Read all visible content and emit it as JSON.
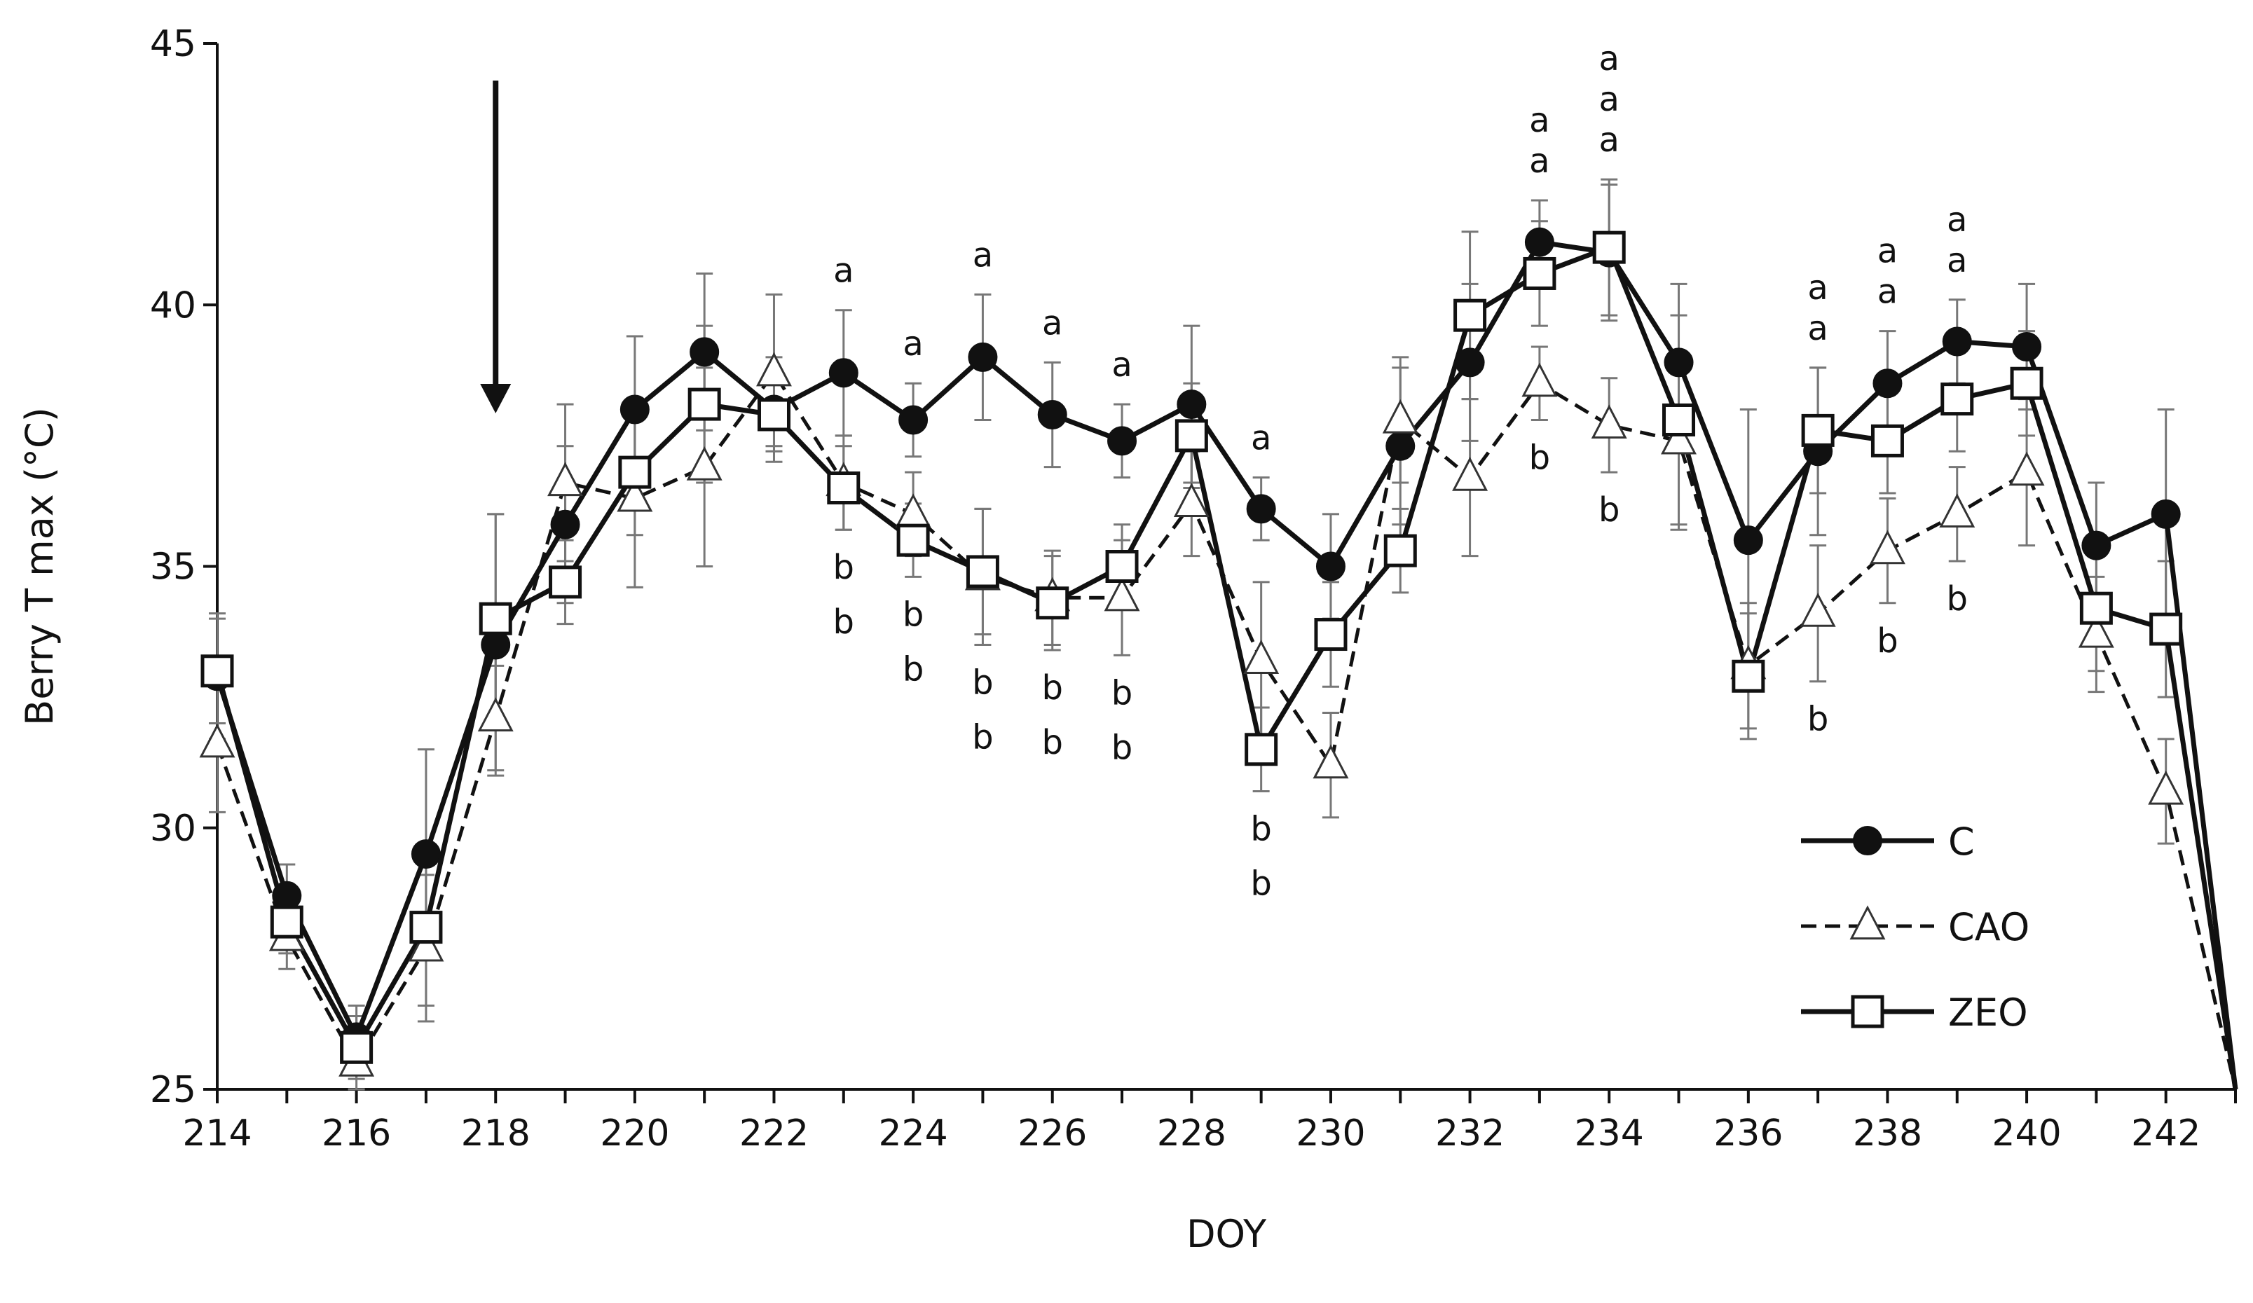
{
  "chart_data": {
    "type": "line",
    "title": "",
    "xlabel": "DOY",
    "ylabel": "Berry T max (°C)",
    "xlim": [
      214,
      243
    ],
    "ylim": [
      25,
      45
    ],
    "x_ticks": [
      "214",
      "216",
      "218",
      "220",
      "222",
      "224",
      "226",
      "228",
      "230",
      "232",
      "234",
      "236",
      "238",
      "240",
      "242"
    ],
    "y_ticks": [
      "25",
      "30",
      "35",
      "40",
      "45"
    ],
    "grid": false,
    "legend_position": "bottom-right",
    "annotation_arrow_x": 218,
    "x": [
      214,
      215,
      216,
      217,
      218,
      219,
      220,
      221,
      222,
      223,
      224,
      225,
      226,
      227,
      228,
      229,
      230,
      231,
      232,
      233,
      234,
      235,
      236,
      237,
      238,
      239,
      240,
      241,
      242,
      243
    ],
    "series": [
      {
        "name": "C",
        "marker": "filled-circle",
        "line_style": "solid",
        "values": [
          32.9,
          28.7,
          26.0,
          29.5,
          33.5,
          35.8,
          38.0,
          39.1,
          38.0,
          38.7,
          37.8,
          39.0,
          37.9,
          37.4,
          38.1,
          36.1,
          35.0,
          37.3,
          38.9,
          41.2,
          41.0,
          38.9,
          35.5,
          37.2,
          38.5,
          39.3,
          39.2,
          35.4,
          36.0,
          25.0
        ],
        "errors": [
          1.2,
          0.6,
          0.6,
          2.0,
          2.5,
          1.5,
          1.4,
          1.5,
          1.0,
          1.2,
          0.7,
          1.2,
          1.0,
          0.7,
          1.5,
          0.6,
          1.0,
          1.5,
          1.5,
          0.8,
          1.3,
          1.5,
          2.5,
          1.6,
          1.0,
          0.8,
          1.2,
          1.2,
          2.0,
          0.0
        ]
      },
      {
        "name": "CAO",
        "marker": "open-triangle",
        "line_style": "dashed",
        "values": [
          31.6,
          27.9,
          25.5,
          27.7,
          32.1,
          36.6,
          36.3,
          36.9,
          38.7,
          36.6,
          36.0,
          34.8,
          34.4,
          34.4,
          36.2,
          33.2,
          31.2,
          37.8,
          36.7,
          38.5,
          37.7,
          37.4,
          33.1,
          34.1,
          35.3,
          36.0,
          36.8,
          33.7,
          30.7,
          25.0
        ],
        "errors": [
          1.3,
          0.6,
          0.6,
          1.4,
          1.0,
          1.5,
          1.7,
          1.9,
          1.5,
          0.9,
          0.8,
          1.3,
          0.9,
          1.1,
          1.0,
          1.5,
          1.0,
          1.2,
          1.5,
          0.7,
          0.9,
          1.7,
          1.2,
          1.3,
          1.0,
          0.9,
          1.4,
          1.1,
          1.0,
          0.0
        ]
      },
      {
        "name": "ZEO",
        "marker": "open-square",
        "line_style": "solid",
        "values": [
          33.0,
          28.2,
          25.8,
          28.1,
          34.0,
          34.7,
          36.8,
          38.1,
          37.9,
          36.5,
          35.5,
          34.9,
          34.3,
          35.0,
          37.5,
          31.5,
          33.7,
          35.3,
          39.8,
          40.6,
          41.1,
          37.8,
          32.9,
          37.6,
          37.4,
          38.2,
          38.5,
          34.2,
          33.8,
          25.0
        ],
        "errors": [
          1.0,
          0.6,
          0.6,
          1.5,
          2.0,
          0.8,
          1.2,
          1.5,
          0.6,
          0.8,
          0.7,
          1.2,
          0.9,
          0.8,
          1.0,
          0.8,
          1.0,
          0.8,
          1.6,
          1.0,
          1.3,
          2.0,
          1.2,
          1.2,
          1.0,
          1.0,
          1.0,
          1.2,
          1.3,
          0.0
        ]
      }
    ],
    "significance_labels": [
      {
        "x": 223,
        "above": [
          "a"
        ],
        "below": [
          "b",
          "b"
        ]
      },
      {
        "x": 224,
        "above": [
          "a"
        ],
        "below": [
          "b",
          "b"
        ]
      },
      {
        "x": 225,
        "above": [
          "a"
        ],
        "below": [
          "b",
          "b"
        ]
      },
      {
        "x": 226,
        "above": [
          "a"
        ],
        "below": [
          "b",
          "b"
        ]
      },
      {
        "x": 227,
        "above": [
          "a"
        ],
        "below": [
          "b",
          "b"
        ]
      },
      {
        "x": 229,
        "above": [
          "a"
        ],
        "below": [
          "b",
          "b"
        ]
      },
      {
        "x": 233,
        "above": [
          "a",
          "a"
        ],
        "below": [
          "b"
        ]
      },
      {
        "x": 234,
        "above": [
          "a",
          "a",
          "a"
        ],
        "below": [
          "b"
        ]
      },
      {
        "x": 237,
        "above": [
          "a",
          "a"
        ],
        "below": [
          "b"
        ]
      },
      {
        "x": 238,
        "above": [
          "a",
          "a"
        ],
        "below": [
          "b"
        ]
      },
      {
        "x": 239,
        "above": [
          "a",
          "a"
        ],
        "below": [
          "b"
        ]
      }
    ]
  }
}
